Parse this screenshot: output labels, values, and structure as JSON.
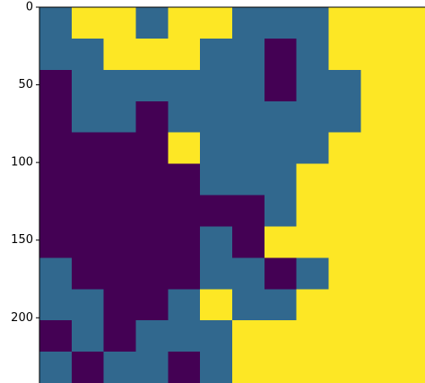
{
  "chart_data": {
    "type": "heatmap",
    "ylim": [
      0,
      242
    ],
    "yticks": [
      0,
      50,
      100,
      150,
      200
    ],
    "colors": [
      "#440154",
      "#31688e",
      "#fde725"
    ],
    "values": [
      [
        1,
        2,
        2,
        1,
        2,
        2,
        1,
        1,
        1,
        2,
        2,
        2
      ],
      [
        1,
        1,
        2,
        2,
        2,
        1,
        1,
        0,
        1,
        2,
        2,
        2
      ],
      [
        0,
        1,
        1,
        1,
        1,
        1,
        1,
        0,
        1,
        1,
        2,
        2
      ],
      [
        0,
        1,
        1,
        0,
        1,
        1,
        1,
        1,
        1,
        1,
        2,
        2
      ],
      [
        0,
        0,
        0,
        0,
        2,
        1,
        1,
        1,
        1,
        2,
        2,
        2
      ],
      [
        0,
        0,
        0,
        0,
        0,
        1,
        1,
        1,
        2,
        2,
        2,
        2
      ],
      [
        0,
        0,
        0,
        0,
        0,
        0,
        0,
        1,
        2,
        2,
        2,
        2
      ],
      [
        0,
        0,
        0,
        0,
        0,
        1,
        0,
        2,
        2,
        2,
        2,
        2
      ],
      [
        1,
        0,
        0,
        0,
        0,
        1,
        1,
        0,
        1,
        2,
        2,
        2
      ],
      [
        1,
        1,
        0,
        0,
        1,
        2,
        1,
        1,
        2,
        2,
        2,
        2
      ],
      [
        0,
        1,
        0,
        1,
        1,
        1,
        2,
        2,
        2,
        2,
        2,
        2
      ],
      [
        1,
        0,
        1,
        1,
        0,
        1,
        2,
        2,
        2,
        2,
        2,
        2
      ]
    ]
  }
}
